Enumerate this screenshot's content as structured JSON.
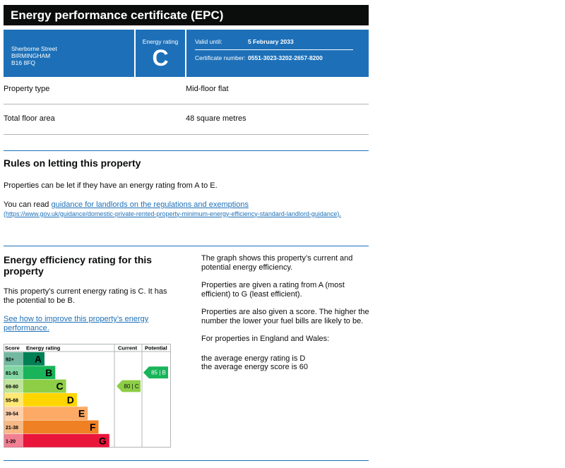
{
  "header": {
    "title": "Energy performance certificate (EPC)"
  },
  "summary": {
    "address": [
      "Sherborne Street",
      "BIRMINGHAM",
      "B16 8FQ"
    ],
    "energy_rating_label": "Energy rating",
    "energy_rating": "C",
    "valid_until_label": "Valid until:",
    "valid_until": "5 February 2033",
    "certificate_number_label": "Certificate number:",
    "certificate_number": "0551-3023-3202-2657-8200"
  },
  "property": {
    "rows": [
      [
        "Property type",
        "Mid-floor flat"
      ],
      [
        "Total floor area",
        "48 square metres"
      ]
    ]
  },
  "letting": {
    "heading": "Rules on letting this property",
    "text": "Properties can be let if they have an energy rating from A to E.",
    "read_prefix": "You can read",
    "link": "guidance for landlords on the regulations and exemptions",
    "url": "(https://www.gov.uk/guidance/domestic-private-rented-property-minimum-energy-efficiency-standard-landlord-guidance)."
  },
  "efficiency": {
    "heading": "Energy efficiency rating for this property",
    "text": "This property’s current energy rating is C. It has the potential to be B.",
    "link": "See how to improve this property’s energy performance.",
    "right": [
      "The graph shows this property’s current and potential energy efficiency.",
      "Properties are given a rating from A (most efficient) to G (least efficient).",
      "Properties are also given a score. The higher the number the lower your fuel bills are likely to be.",
      "For properties in England and Wales:"
    ],
    "averages": [
      "the average energy rating is D",
      "the average energy score is 60"
    ]
  },
  "rating_chart": {
    "headers": [
      "Score",
      "Energy rating",
      "Current",
      "Potential"
    ],
    "bands": [
      {
        "score": "92+",
        "letter": "A"
      },
      {
        "score": "81-91",
        "letter": "B"
      },
      {
        "score": "69-80",
        "letter": "C"
      },
      {
        "score": "55-68",
        "letter": "D"
      },
      {
        "score": "39-54",
        "letter": "E"
      },
      {
        "score": "21-38",
        "letter": "F"
      },
      {
        "score": "1-20",
        "letter": "G"
      }
    ],
    "current": "80 | C",
    "potential": "85 | B"
  }
}
